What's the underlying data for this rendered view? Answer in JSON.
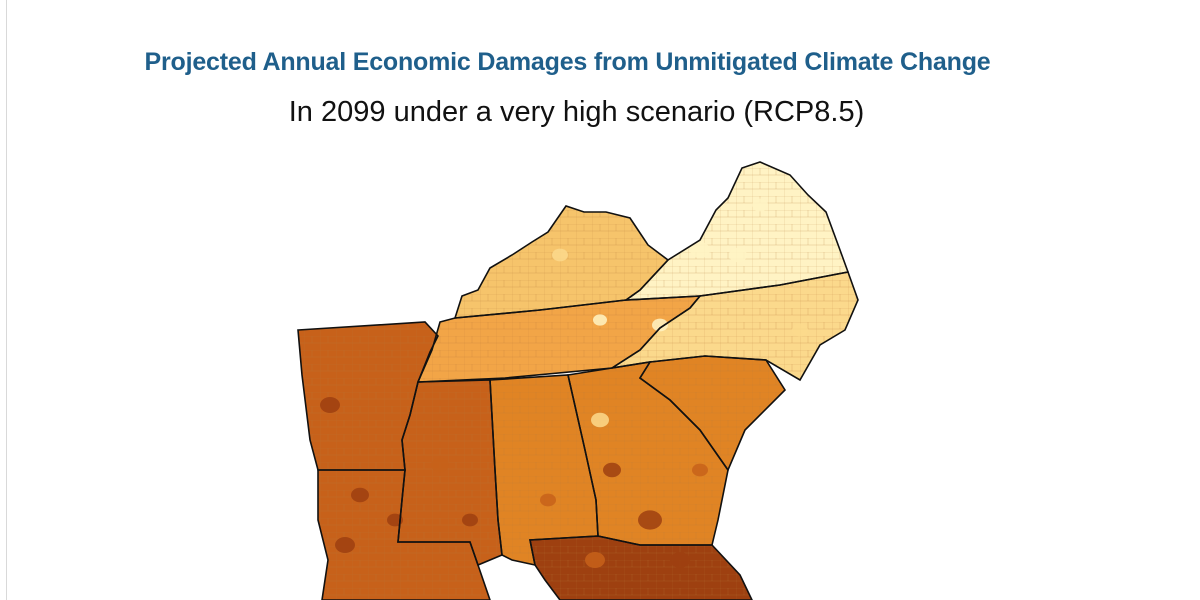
{
  "title": "Projected Annual Economic Damages from Unmitigated Climate Change",
  "subtitle": "In 2099 under a very high scenario (RCP8.5)",
  "colors": {
    "title": "#1f5f8b",
    "lightest": "#fff3c4",
    "light": "#fbd98c",
    "medium": "#f2a547",
    "medium_dark": "#e08424",
    "dark": "#c7611a",
    "darkest": "#9e4010",
    "county_line": "#b07a3a",
    "state_line": "#111111"
  },
  "map": {
    "region": "Southeastern United States",
    "states": [
      {
        "abbr": "KY",
        "damage_level": "medium-low"
      },
      {
        "abbr": "VA",
        "damage_level": "low"
      },
      {
        "abbr": "TN",
        "damage_level": "medium"
      },
      {
        "abbr": "NC",
        "damage_level": "low-medium"
      },
      {
        "abbr": "AR",
        "damage_level": "high"
      },
      {
        "abbr": "MS",
        "damage_level": "high"
      },
      {
        "abbr": "AL",
        "damage_level": "medium-high"
      },
      {
        "abbr": "GA",
        "damage_level": "medium-high"
      },
      {
        "abbr": "SC",
        "damage_level": "medium-high"
      },
      {
        "abbr": "LA",
        "damage_level": "high"
      },
      {
        "abbr": "FL",
        "damage_level": "very-high"
      }
    ]
  }
}
